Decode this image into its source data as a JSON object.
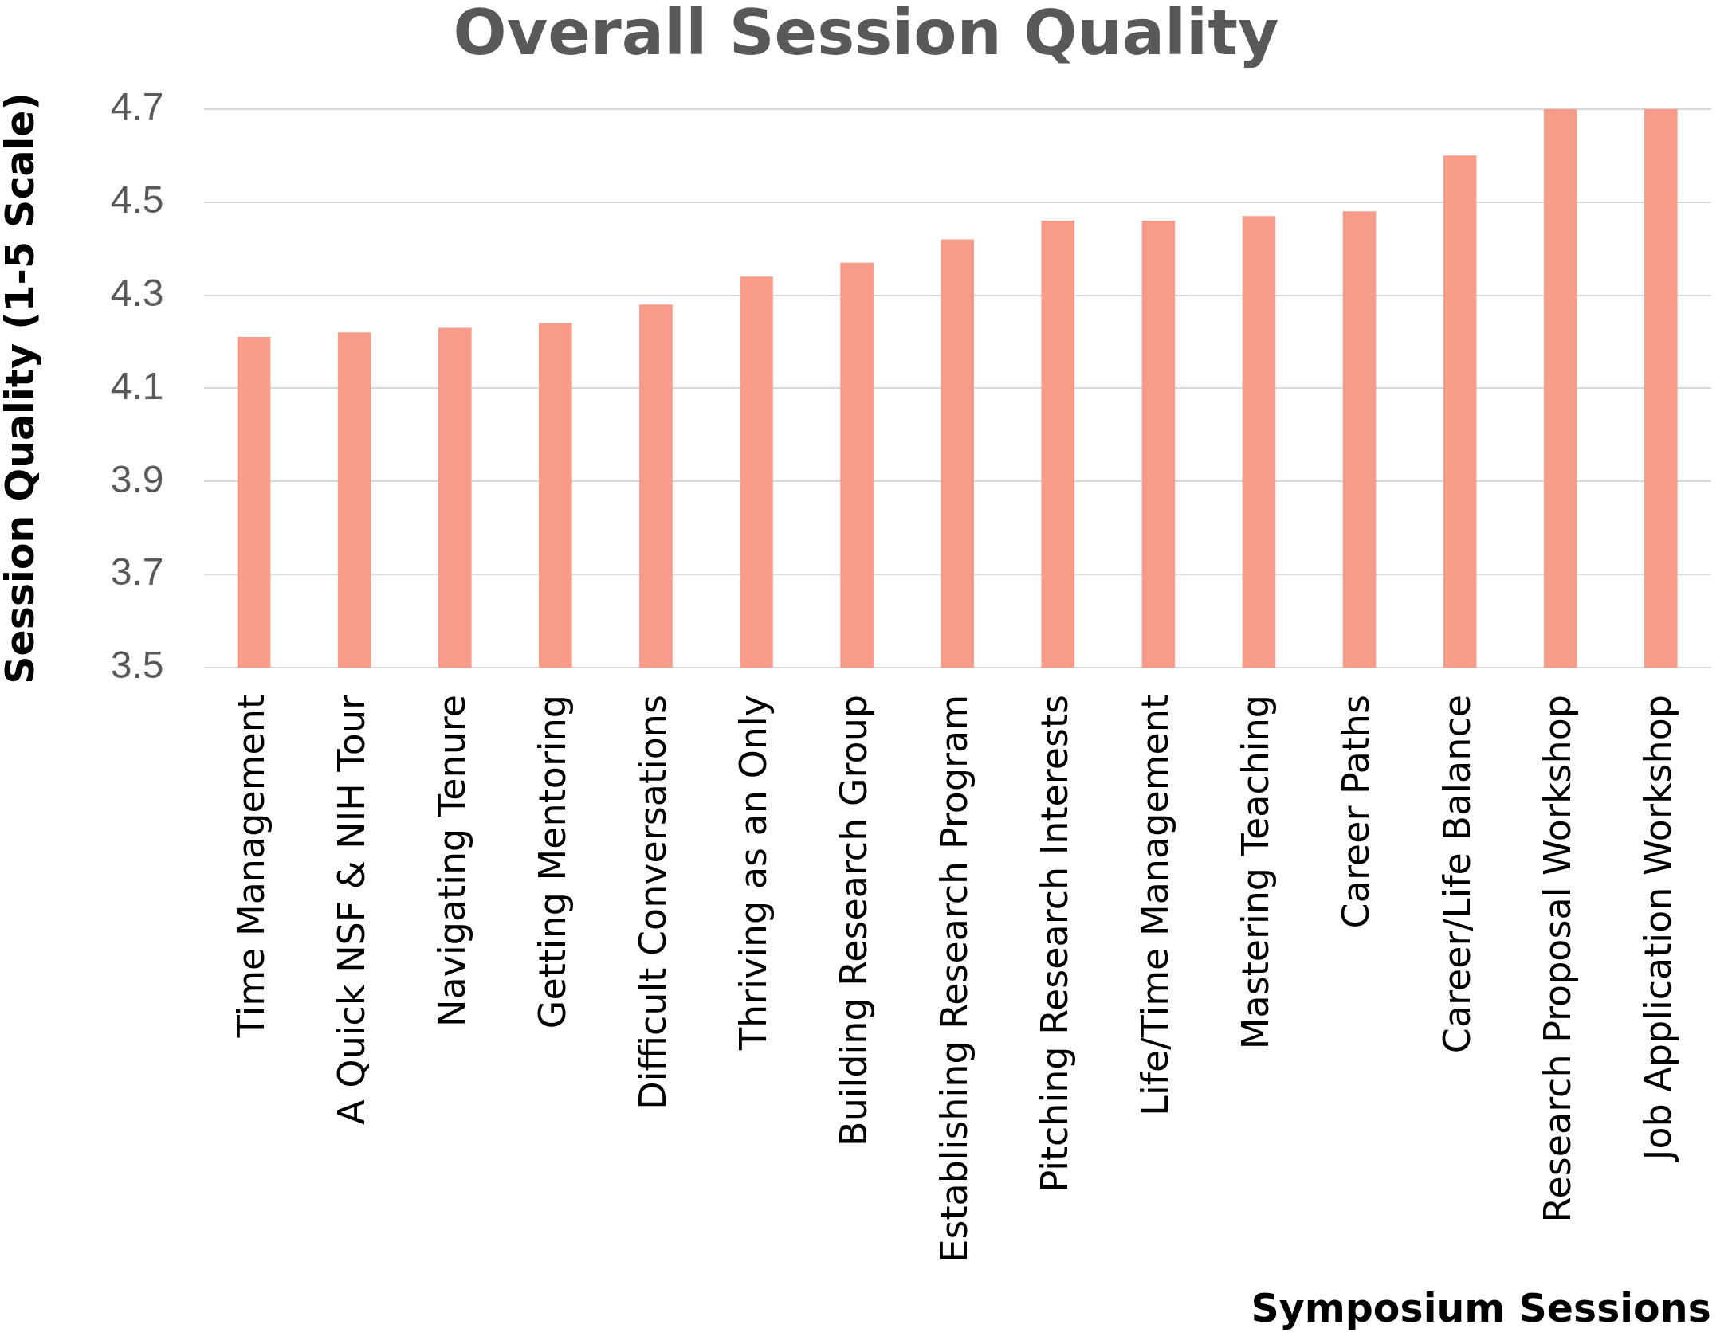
{
  "chart_data": {
    "type": "bar",
    "title": "Overall Session Quality",
    "xlabel": "Symposium Sessions",
    "ylabel": "Session Quality (1-5 Scale)",
    "categories": [
      "Time Management",
      "A Quick NSF & NIH Tour",
      "Navigating Tenure",
      "Getting Mentoring",
      "Difficult Conversations",
      "Thriving as an Only",
      "Building Research Group",
      "Establishing Research Program",
      "Pitching Research Interests",
      "Life/Time Management",
      "Mastering Teaching",
      "Career Paths",
      "Career/Life Balance",
      "Research Proposal Workshop",
      "Job Application Workshop"
    ],
    "values": [
      4.21,
      4.22,
      4.23,
      4.24,
      4.28,
      4.34,
      4.37,
      4.42,
      4.46,
      4.46,
      4.47,
      4.48,
      4.6,
      4.7,
      4.7
    ],
    "color": "#f69c88",
    "ylim": [
      3.5,
      4.7
    ],
    "yticks": [
      3.5,
      3.7,
      3.9,
      4.1,
      4.3,
      4.5,
      4.7
    ],
    "grid": "y"
  }
}
